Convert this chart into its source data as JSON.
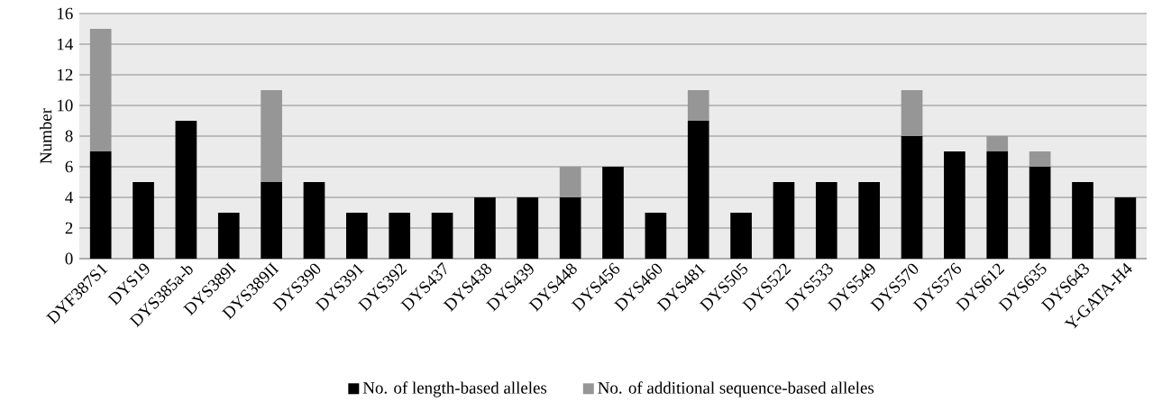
{
  "chart_data": {
    "type": "bar",
    "stacked": true,
    "ylabel": "Number",
    "categories": [
      "DYF387S1",
      "DYS19",
      "DYS385a-b",
      "DYS389I",
      "DYS389II",
      "DYS390",
      "DYS391",
      "DYS392",
      "DYS437",
      "DYS438",
      "DYS439",
      "DYS448",
      "DYS456",
      "DYS460",
      "DYS481",
      "DYS505",
      "DYS522",
      "DYS533",
      "DYS549",
      "DYS570",
      "DYS576",
      "DYS612",
      "DYS635",
      "DYS643",
      "Y-GATA-H4"
    ],
    "series": [
      {
        "name": "No. of length-based alleles",
        "color": "#000000",
        "values": [
          7,
          5,
          9,
          3,
          5,
          5,
          3,
          3,
          3,
          4,
          4,
          4,
          6,
          3,
          9,
          3,
          5,
          5,
          5,
          8,
          7,
          7,
          6,
          5,
          4
        ]
      },
      {
        "name": "No. of additional sequence-based alleles",
        "color": "#969696",
        "values": [
          8,
          null,
          null,
          null,
          6,
          null,
          null,
          null,
          null,
          null,
          null,
          2,
          null,
          null,
          2,
          null,
          null,
          null,
          null,
          3,
          null,
          1,
          1,
          null,
          null
        ]
      }
    ],
    "ylim": [
      0,
      16
    ],
    "yticks": [
      0,
      2,
      4,
      6,
      8,
      10,
      12,
      14,
      16
    ],
    "grid": "y",
    "legend": "bottom"
  }
}
